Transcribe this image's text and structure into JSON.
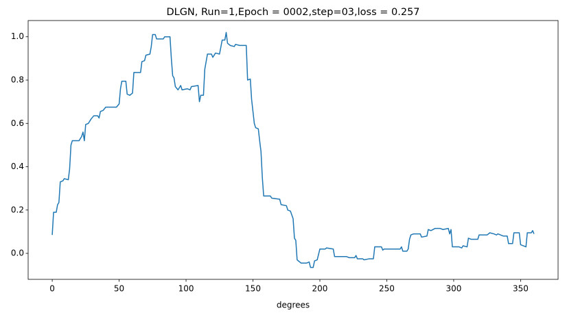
{
  "chart_data": {
    "type": "line",
    "title": "DLGN, Run=1,Epoch = 0002,step=03,loss = 0.257",
    "xlabel": "degrees",
    "x": [
      0,
      1,
      3,
      4,
      5,
      6,
      8,
      9,
      12,
      13,
      14,
      15,
      20,
      22,
      23,
      24,
      25,
      27,
      29,
      31,
      34,
      35,
      36,
      38,
      40,
      48,
      50,
      51,
      52,
      55,
      56,
      58,
      60,
      61,
      66,
      67,
      69,
      70,
      73,
      74,
      75,
      77,
      78,
      83,
      84,
      88,
      89,
      90,
      91,
      92,
      94,
      96,
      97,
      101,
      103,
      104,
      109,
      110,
      111,
      113,
      114,
      116,
      119,
      120,
      122,
      125,
      127,
      129,
      130,
      131,
      133,
      136,
      137,
      140,
      145,
      146,
      148,
      149,
      151,
      152,
      154,
      155,
      156,
      157,
      158,
      163,
      164,
      170,
      171,
      175,
      176,
      178,
      180,
      181,
      182,
      183,
      184,
      186,
      190,
      192,
      193,
      195,
      196,
      198,
      200,
      204,
      205,
      210,
      211,
      220,
      222,
      226,
      227,
      228,
      232,
      233,
      237,
      240,
      241,
      246,
      247,
      248,
      260,
      261,
      262,
      265,
      266,
      267,
      268,
      270,
      275,
      276,
      280,
      281,
      283,
      286,
      290,
      292,
      296,
      297,
      298,
      299,
      304,
      306,
      307,
      310,
      311,
      313,
      318,
      319,
      325,
      327,
      330,
      332,
      333,
      337,
      340,
      341,
      344,
      345,
      349,
      350,
      354,
      355,
      358,
      359,
      360
    ],
    "series": [
      {
        "color": "#1f77b4",
        "values": [
          0.085,
          0.19,
          0.19,
          0.225,
          0.235,
          0.33,
          0.335,
          0.345,
          0.34,
          0.39,
          0.5,
          0.52,
          0.52,
          0.54,
          0.56,
          0.52,
          0.595,
          0.6,
          0.62,
          0.635,
          0.635,
          0.625,
          0.655,
          0.66,
          0.675,
          0.675,
          0.69,
          0.76,
          0.795,
          0.795,
          0.735,
          0.73,
          0.74,
          0.835,
          0.835,
          0.885,
          0.89,
          0.915,
          0.92,
          0.955,
          1.01,
          1.01,
          0.99,
          0.99,
          1.0,
          1.0,
          0.9,
          0.82,
          0.81,
          0.77,
          0.755,
          0.775,
          0.755,
          0.76,
          0.755,
          0.77,
          0.775,
          0.7,
          0.73,
          0.73,
          0.85,
          0.92,
          0.92,
          0.905,
          0.925,
          0.92,
          0.985,
          0.985,
          1.02,
          0.97,
          0.96,
          0.955,
          0.965,
          0.96,
          0.96,
          0.8,
          0.805,
          0.71,
          0.6,
          0.58,
          0.575,
          0.52,
          0.47,
          0.35,
          0.265,
          0.265,
          0.255,
          0.25,
          0.225,
          0.22,
          0.2,
          0.195,
          0.16,
          0.07,
          0.06,
          -0.03,
          -0.035,
          -0.045,
          -0.045,
          -0.04,
          -0.065,
          -0.065,
          -0.035,
          -0.03,
          0.02,
          0.02,
          0.025,
          0.02,
          -0.015,
          -0.015,
          -0.02,
          -0.02,
          -0.01,
          -0.025,
          -0.025,
          -0.03,
          -0.025,
          -0.025,
          0.03,
          0.03,
          0.015,
          0.02,
          0.02,
          0.03,
          0.01,
          0.01,
          0.02,
          0.065,
          0.085,
          0.09,
          0.09,
          0.075,
          0.08,
          0.11,
          0.105,
          0.115,
          0.115,
          0.11,
          0.115,
          0.09,
          0.11,
          0.03,
          0.03,
          0.025,
          0.035,
          0.03,
          0.07,
          0.065,
          0.065,
          0.085,
          0.085,
          0.095,
          0.09,
          0.085,
          0.09,
          0.08,
          0.08,
          0.045,
          0.045,
          0.095,
          0.095,
          0.04,
          0.03,
          0.095,
          0.095,
          0.105,
          0.09
        ]
      }
    ],
    "xlim": [
      -18,
      378
    ],
    "ylim": [
      -0.12,
      1.075
    ],
    "xticks": [
      0,
      50,
      100,
      150,
      200,
      250,
      300,
      350
    ],
    "yticks": [
      {
        "value": 0,
        "label": "0.0"
      },
      0.2,
      0.4,
      0.6,
      0.8,
      {
        "value": 1,
        "label": "1.0"
      }
    ]
  }
}
